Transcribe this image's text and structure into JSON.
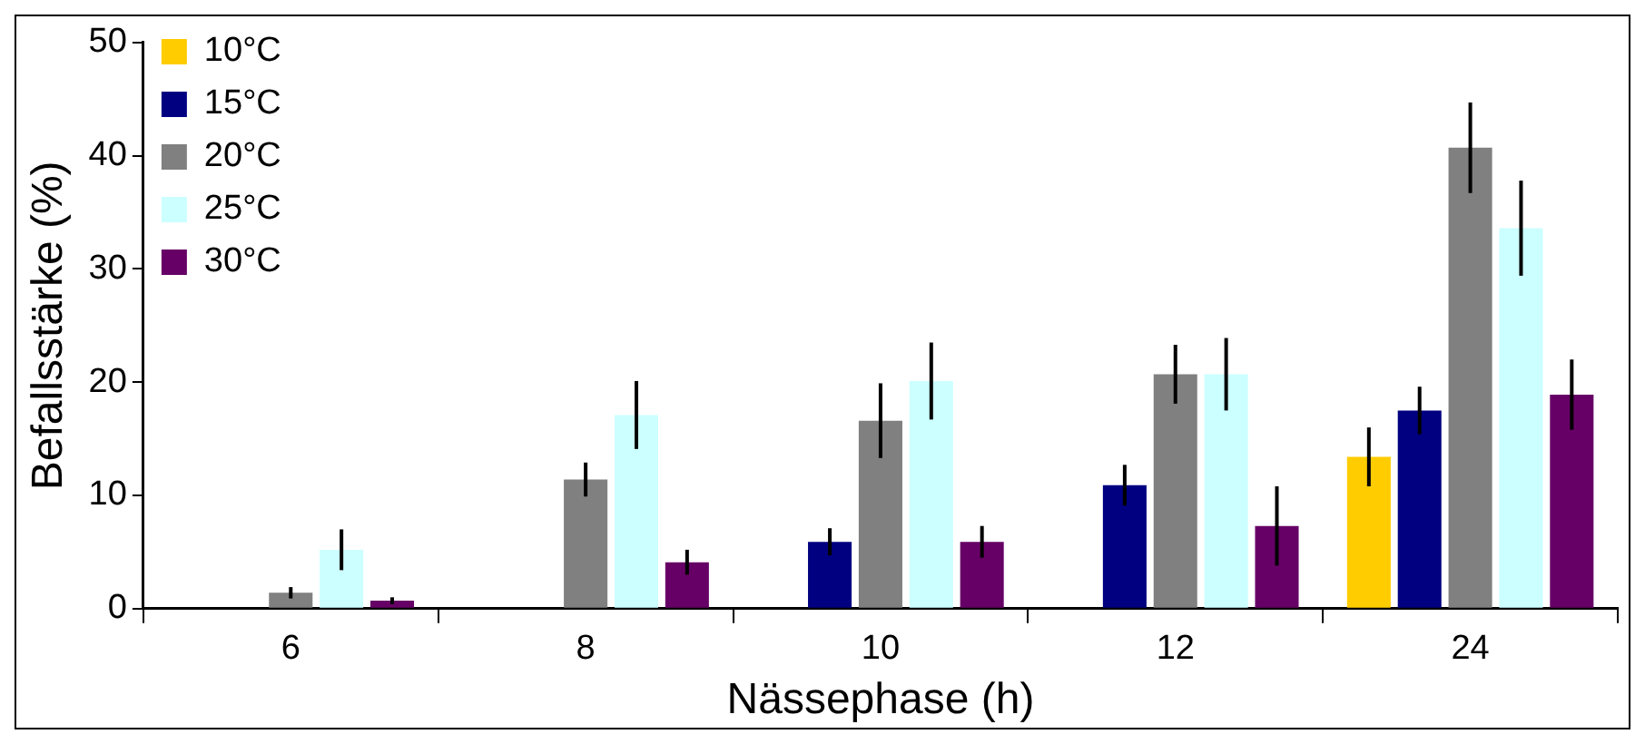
{
  "chart_data": {
    "type": "bar",
    "xlabel": "Nässephase (h)",
    "ylabel": "Befallsstärke (%)",
    "categories": [
      "6",
      "8",
      "10",
      "12",
      "24"
    ],
    "series": [
      {
        "name": "10°C",
        "color": "#ffcc00",
        "values": [
          0,
          0,
          0,
          0,
          13.4
        ],
        "errors": [
          null,
          null,
          null,
          null,
          2.6
        ]
      },
      {
        "name": "15°C",
        "color": "#000080",
        "values": [
          0,
          0,
          5.9,
          10.9,
          17.5
        ],
        "errors": [
          null,
          null,
          1.2,
          1.8,
          2.1
        ]
      },
      {
        "name": "20°C",
        "color": "#808080",
        "values": [
          1.4,
          11.4,
          16.6,
          20.7,
          40.7
        ],
        "errors": [
          0.5,
          1.5,
          3.3,
          2.6,
          4.0
        ]
      },
      {
        "name": "25°C",
        "color": "#ccffff",
        "values": [
          5.2,
          17.1,
          20.1,
          20.7,
          33.6
        ],
        "errors": [
          1.8,
          3.0,
          3.4,
          3.2,
          4.2
        ]
      },
      {
        "name": "30°C",
        "color": "#660066",
        "values": [
          0.7,
          4.1,
          5.9,
          7.3,
          18.9
        ],
        "errors": [
          0.3,
          1.1,
          1.4,
          3.5,
          3.1
        ]
      }
    ],
    "ylim": [
      0,
      50
    ],
    "yticks": [
      0,
      10,
      20,
      30,
      40,
      50
    ],
    "grid": false,
    "legend": "top left"
  }
}
